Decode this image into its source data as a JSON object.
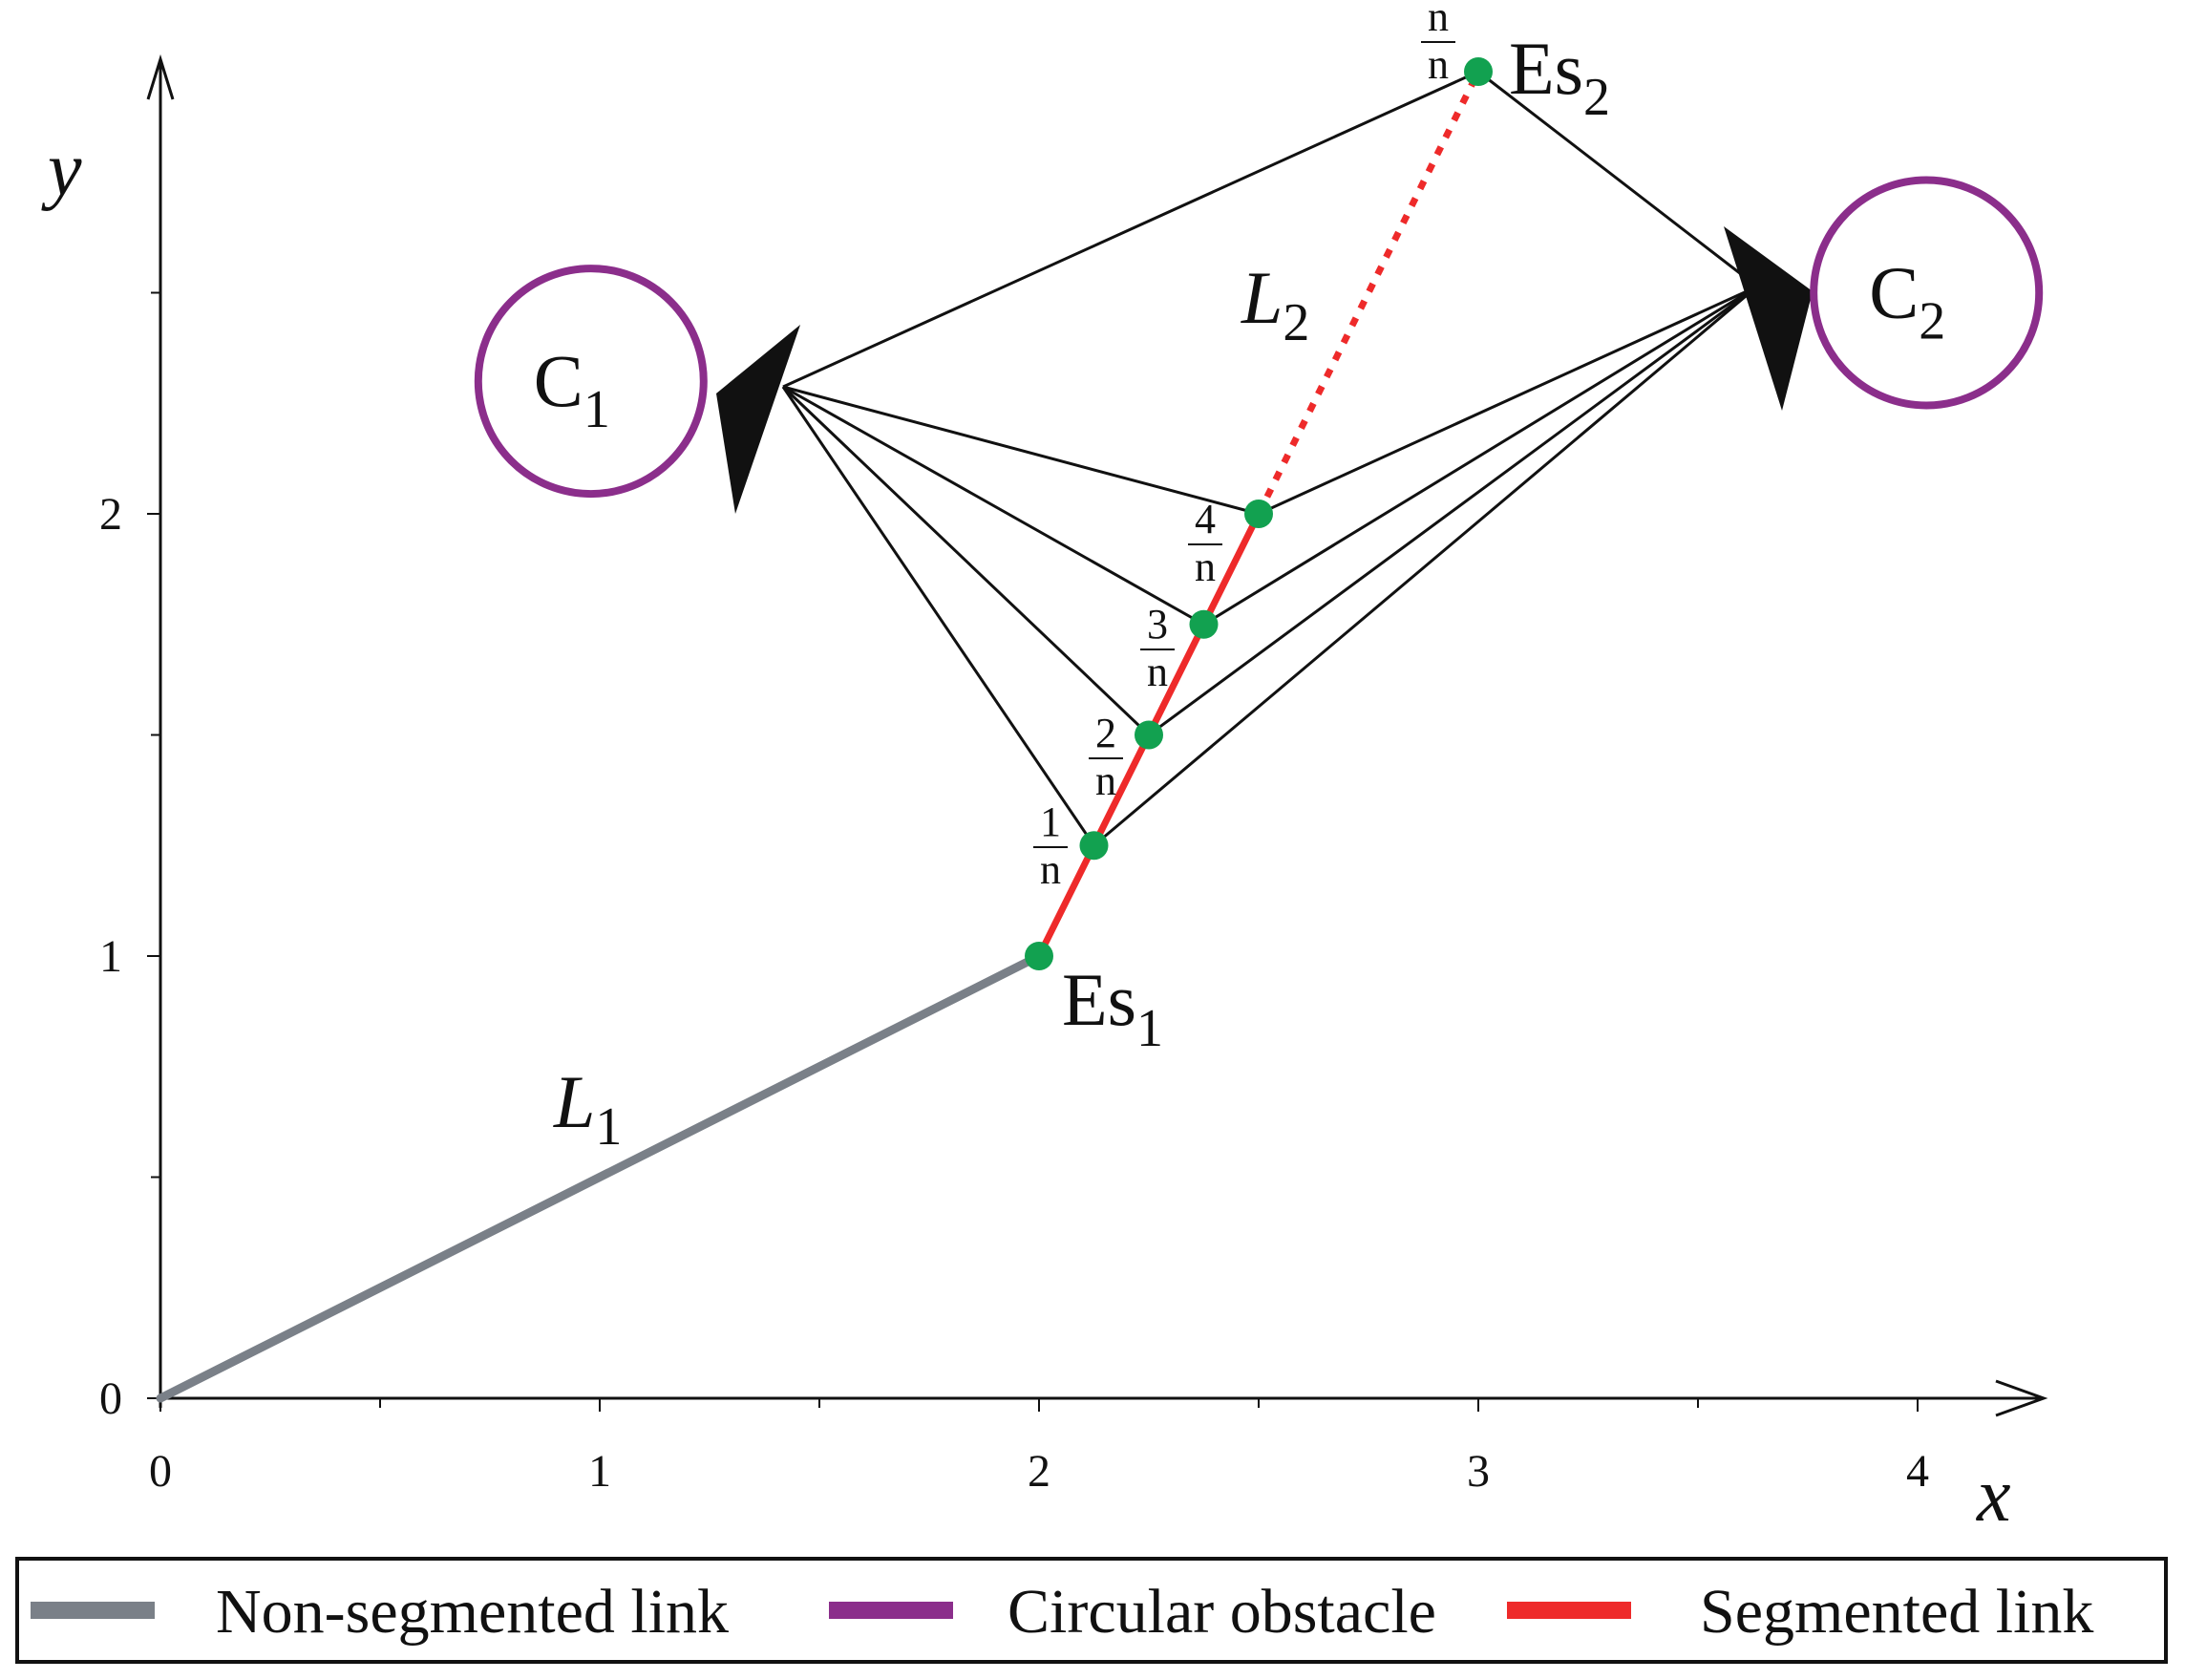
{
  "chart_data": {
    "type": "line",
    "title": "",
    "xlabel": "x",
    "ylabel": "y",
    "xlim": [
      0,
      4.3
    ],
    "ylim": [
      0,
      3.0
    ],
    "x_ticks": [
      "0",
      "1",
      "2",
      "3",
      "4"
    ],
    "y_ticks": [
      "0",
      "1",
      "2"
    ],
    "links": {
      "L1": {
        "label": "L",
        "subscript": "1",
        "from": [
          0,
          0
        ],
        "to": [
          2,
          1
        ],
        "style": "Non-segmented link"
      },
      "L2": {
        "label": "L",
        "subscript": "2",
        "from": [
          2,
          1
        ],
        "to": [
          3,
          3
        ],
        "style": "Segmented link"
      }
    },
    "endpoints": [
      {
        "name": "Es",
        "subscript": "1",
        "x": 2.0,
        "y": 1.0
      },
      {
        "name": "Es",
        "subscript": "2",
        "x": 3.0,
        "y": 3.0
      }
    ],
    "segment_points": [
      {
        "num": "1",
        "den": "n",
        "x": 2.125,
        "y": 1.25
      },
      {
        "num": "2",
        "den": "n",
        "x": 2.25,
        "y": 1.5
      },
      {
        "num": "3",
        "den": "n",
        "x": 2.375,
        "y": 1.75
      },
      {
        "num": "4",
        "den": "n",
        "x": 2.5,
        "y": 2.0
      },
      {
        "num": "n",
        "den": "n",
        "x": 3.0,
        "y": 3.0
      }
    ],
    "obstacles": [
      {
        "name": "C",
        "subscript": "1",
        "cx": 0.98,
        "cy": 2.3,
        "r": 0.26
      },
      {
        "name": "C",
        "subscript": "2",
        "cx": 4.02,
        "cy": 2.5,
        "r": 0.26
      }
    ],
    "arrow_tips": [
      {
        "target": "C1",
        "x": 1.27,
        "y": 2.27
      },
      {
        "target": "C2",
        "x": 3.75,
        "y": 2.5
      }
    ],
    "legend": {
      "position": "bottom",
      "entries": [
        {
          "label": "Non-segmented link",
          "color": "#7a8088"
        },
        {
          "label": "Circular obstacle",
          "color": "#8b2e8b"
        },
        {
          "label": "Segmented link",
          "color": "#ee2a2a"
        }
      ]
    }
  },
  "colors": {
    "axis": "#111111",
    "point": "#12a150",
    "ray": "#111111"
  }
}
